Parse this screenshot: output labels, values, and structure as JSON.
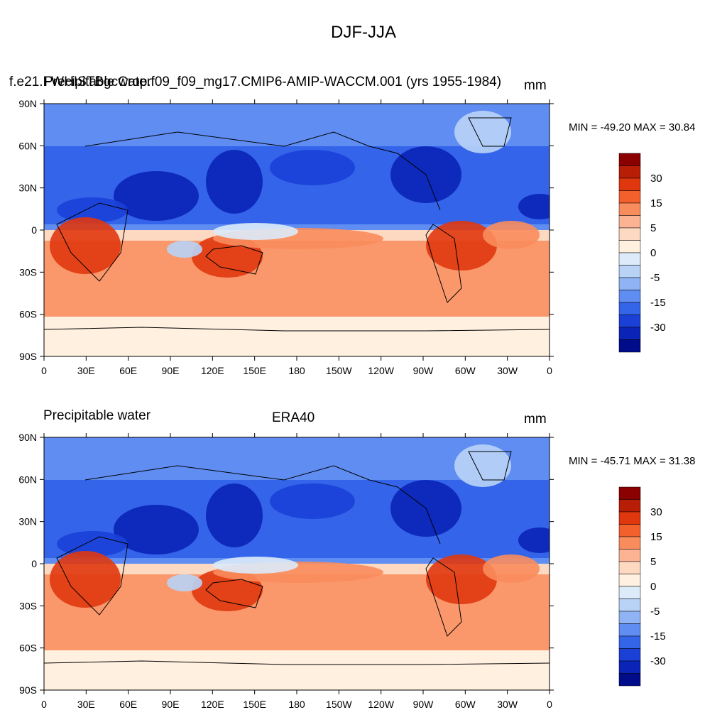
{
  "figure_title": "DJF-JJA",
  "panels": [
    {
      "left_title": "Precipitable water",
      "center_title": "f.e21.FWHISTBgcCrop.f09_f09_mg17.CMIP6-AMIP-WACCM.001 (yrs 1955-1984)",
      "right_title": "mm",
      "min_max": "MIN = -49.20 MAX =  30.84"
    },
    {
      "left_title": "Precipitable water",
      "center_title": "ERA40",
      "right_title": "mm",
      "min_max": "MIN = -45.71 MAX =  31.38"
    }
  ],
  "axes": {
    "x_ticks": [
      "0",
      "30E",
      "60E",
      "90E",
      "120E",
      "150E",
      "180",
      "150W",
      "120W",
      "90W",
      "60W",
      "30W",
      "0"
    ],
    "y_ticks": [
      "90N",
      "60N",
      "30N",
      "0",
      "30S",
      "60S",
      "90S"
    ]
  },
  "colorbar": {
    "labels": [
      "30",
      "15",
      "5",
      "0",
      "-5",
      "-15",
      "-30"
    ],
    "colors": [
      "#8b0000",
      "#b81d05",
      "#e0370e",
      "#f4602c",
      "#f98c5c",
      "#fbb393",
      "#fdd9c2",
      "#fff0e0",
      "#dceaf9",
      "#b9d3f7",
      "#8fb3f4",
      "#5f8df2",
      "#3464ea",
      "#1a40d8",
      "#0a24b8",
      "#000c8a"
    ]
  },
  "legend_colors": {
    "strong_positive": "#e0370e",
    "moderate_positive": "#f98c5c",
    "weak_positive": "#fdd9c2",
    "weak_negative": "#b9d3f7",
    "moderate_negative": "#5f8df2",
    "strong_negative": "#0a24b8"
  }
}
